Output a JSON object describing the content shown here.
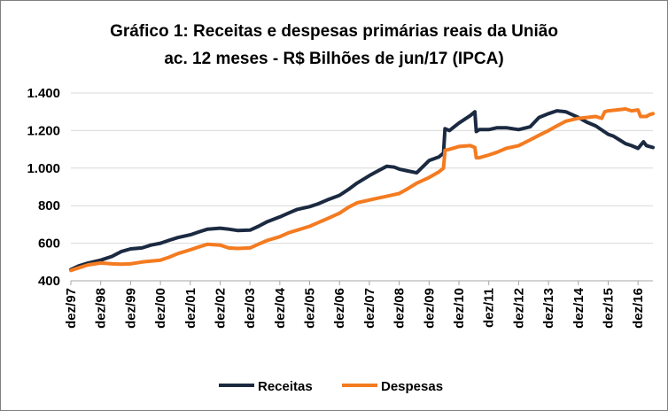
{
  "chart_data": {
    "type": "line",
    "title": [
      "Gráfico 1: Receitas e despesas primárias reais da União",
      "ac. 12 meses - R$ Bilhões de jun/17 (IPCA)"
    ],
    "xlabel": "",
    "ylabel": "",
    "ylim": [
      400,
      1400
    ],
    "yticks": [
      400,
      600,
      800,
      1000,
      1200,
      1400
    ],
    "ytick_labels": [
      "400",
      "600",
      "800",
      "1.000",
      "1.200",
      "1.400"
    ],
    "xlim": [
      1997.917,
      2017.417
    ],
    "xtick_years": [
      1997.917,
      1998.917,
      1999.917,
      2000.917,
      2001.917,
      2002.917,
      2003.917,
      2004.917,
      2005.917,
      2006.917,
      2007.917,
      2008.917,
      2009.917,
      2010.917,
      2011.917,
      2012.917,
      2013.917,
      2014.917,
      2015.917,
      2016.917
    ],
    "xtick_labels": [
      "dez/97",
      "dez/98",
      "dez/99",
      "dez/00",
      "dez/01",
      "dez/02",
      "dez/03",
      "dez/04",
      "dez/05",
      "dez/06",
      "dez/07",
      "dez/08",
      "dez/09",
      "dez/10",
      "dez/11",
      "dez/12",
      "dez/13",
      "dez/14",
      "dez/15",
      "dez/16"
    ],
    "grid": true,
    "legend_position": "bottom",
    "series": [
      {
        "name": "Receitas",
        "color": "#1b2a41",
        "points": [
          [
            1997.917,
            460
          ],
          [
            1998.2,
            480
          ],
          [
            1998.5,
            495
          ],
          [
            1998.917,
            510
          ],
          [
            1999.3,
            530
          ],
          [
            1999.6,
            555
          ],
          [
            1999.917,
            570
          ],
          [
            2000.3,
            575
          ],
          [
            2000.6,
            590
          ],
          [
            2000.917,
            600
          ],
          [
            2001.2,
            615
          ],
          [
            2001.5,
            630
          ],
          [
            2001.917,
            645
          ],
          [
            2002.2,
            660
          ],
          [
            2002.5,
            675
          ],
          [
            2002.917,
            680
          ],
          [
            2003.2,
            675
          ],
          [
            2003.5,
            668
          ],
          [
            2003.917,
            670
          ],
          [
            2004.2,
            690
          ],
          [
            2004.5,
            715
          ],
          [
            2004.917,
            740
          ],
          [
            2005.2,
            760
          ],
          [
            2005.5,
            780
          ],
          [
            2005.917,
            795
          ],
          [
            2006.2,
            810
          ],
          [
            2006.5,
            830
          ],
          [
            2006.917,
            855
          ],
          [
            2007.2,
            885
          ],
          [
            2007.5,
            920
          ],
          [
            2007.917,
            960
          ],
          [
            2008.2,
            985
          ],
          [
            2008.5,
            1010
          ],
          [
            2008.75,
            1005
          ],
          [
            2008.917,
            995
          ],
          [
            2009.2,
            985
          ],
          [
            2009.5,
            975
          ],
          [
            2009.917,
            1040
          ],
          [
            2010.25,
            1060
          ],
          [
            2010.4,
            1080
          ],
          [
            2010.45,
            1210
          ],
          [
            2010.6,
            1200
          ],
          [
            2010.917,
            1240
          ],
          [
            2011.3,
            1280
          ],
          [
            2011.45,
            1300
          ],
          [
            2011.5,
            1195
          ],
          [
            2011.6,
            1205
          ],
          [
            2011.917,
            1205
          ],
          [
            2012.2,
            1215
          ],
          [
            2012.5,
            1215
          ],
          [
            2012.917,
            1205
          ],
          [
            2013.3,
            1220
          ],
          [
            2013.6,
            1270
          ],
          [
            2013.917,
            1290
          ],
          [
            2014.2,
            1305
          ],
          [
            2014.5,
            1300
          ],
          [
            2014.917,
            1270
          ],
          [
            2015.2,
            1245
          ],
          [
            2015.5,
            1225
          ],
          [
            2015.917,
            1180
          ],
          [
            2016.1,
            1170
          ],
          [
            2016.3,
            1150
          ],
          [
            2016.5,
            1130
          ],
          [
            2016.7,
            1120
          ],
          [
            2016.917,
            1105
          ],
          [
            2017.1,
            1140
          ],
          [
            2017.2,
            1120
          ],
          [
            2017.417,
            1110
          ]
        ]
      },
      {
        "name": "Despesas",
        "color": "#f47b20",
        "points": [
          [
            1997.917,
            455
          ],
          [
            1998.2,
            470
          ],
          [
            1998.5,
            485
          ],
          [
            1998.917,
            495
          ],
          [
            1999.3,
            490
          ],
          [
            1999.6,
            488
          ],
          [
            1999.917,
            490
          ],
          [
            2000.3,
            500
          ],
          [
            2000.6,
            505
          ],
          [
            2000.917,
            510
          ],
          [
            2001.2,
            525
          ],
          [
            2001.5,
            545
          ],
          [
            2001.917,
            565
          ],
          [
            2002.2,
            580
          ],
          [
            2002.5,
            595
          ],
          [
            2002.917,
            590
          ],
          [
            2003.2,
            575
          ],
          [
            2003.5,
            572
          ],
          [
            2003.917,
            575
          ],
          [
            2004.2,
            595
          ],
          [
            2004.5,
            615
          ],
          [
            2004.917,
            635
          ],
          [
            2005.2,
            655
          ],
          [
            2005.5,
            670
          ],
          [
            2005.917,
            690
          ],
          [
            2006.2,
            710
          ],
          [
            2006.5,
            730
          ],
          [
            2006.917,
            760
          ],
          [
            2007.2,
            790
          ],
          [
            2007.5,
            815
          ],
          [
            2007.917,
            830
          ],
          [
            2008.2,
            840
          ],
          [
            2008.5,
            850
          ],
          [
            2008.917,
            865
          ],
          [
            2009.2,
            890
          ],
          [
            2009.5,
            920
          ],
          [
            2009.917,
            950
          ],
          [
            2010.25,
            980
          ],
          [
            2010.4,
            1000
          ],
          [
            2010.45,
            1095
          ],
          [
            2010.6,
            1100
          ],
          [
            2010.917,
            1115
          ],
          [
            2011.3,
            1120
          ],
          [
            2011.45,
            1110
          ],
          [
            2011.5,
            1055
          ],
          [
            2011.6,
            1055
          ],
          [
            2011.917,
            1070
          ],
          [
            2012.2,
            1085
          ],
          [
            2012.5,
            1105
          ],
          [
            2012.917,
            1120
          ],
          [
            2013.3,
            1150
          ],
          [
            2013.6,
            1175
          ],
          [
            2013.917,
            1200
          ],
          [
            2014.2,
            1225
          ],
          [
            2014.5,
            1250
          ],
          [
            2014.917,
            1265
          ],
          [
            2015.2,
            1270
          ],
          [
            2015.5,
            1275
          ],
          [
            2015.7,
            1265
          ],
          [
            2015.8,
            1300
          ],
          [
            2015.917,
            1305
          ],
          [
            2016.2,
            1310
          ],
          [
            2016.5,
            1315
          ],
          [
            2016.7,
            1305
          ],
          [
            2016.917,
            1310
          ],
          [
            2017.0,
            1275
          ],
          [
            2017.2,
            1275
          ],
          [
            2017.3,
            1285
          ],
          [
            2017.417,
            1290
          ]
        ]
      }
    ]
  }
}
